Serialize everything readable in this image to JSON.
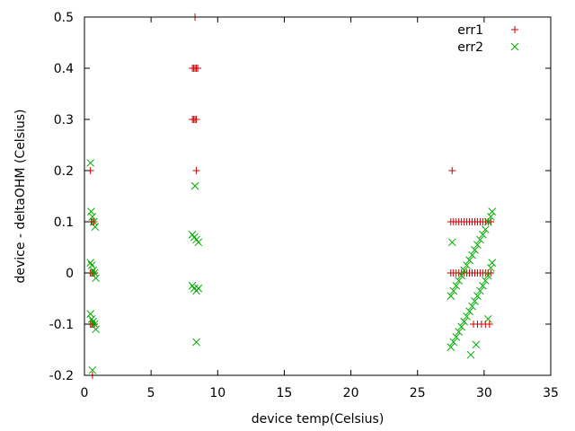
{
  "chart_data": {
    "type": "scatter",
    "title": "",
    "xlabel": "device temp(Celsius)",
    "ylabel": "device - deltaOHM (Celsius)",
    "xlim": [
      0,
      35
    ],
    "ylim": [
      -0.2,
      0.5
    ],
    "xticks": [
      0,
      5,
      10,
      15,
      20,
      25,
      30,
      35
    ],
    "yticks": [
      -0.2,
      -0.1,
      0,
      0.1,
      0.2,
      0.3,
      0.4,
      0.5
    ],
    "grid": false,
    "legend_position": "top-right",
    "series": [
      {
        "name": "err1",
        "marker": "plus",
        "color": "#cc0000",
        "points": [
          [
            0.45,
            0.2
          ],
          [
            0.5,
            0.1
          ],
          [
            0.6,
            0.1
          ],
          [
            0.7,
            0.1
          ],
          [
            0.45,
            0.0
          ],
          [
            0.55,
            0.0
          ],
          [
            0.65,
            0.0
          ],
          [
            0.75,
            0.0
          ],
          [
            0.45,
            -0.1
          ],
          [
            0.55,
            -0.1
          ],
          [
            0.65,
            -0.1
          ],
          [
            0.75,
            -0.1
          ],
          [
            0.6,
            -0.2
          ],
          [
            8.3,
            0.5
          ],
          [
            8.1,
            0.4
          ],
          [
            8.2,
            0.4
          ],
          [
            8.3,
            0.4
          ],
          [
            8.4,
            0.4
          ],
          [
            8.5,
            0.4
          ],
          [
            8.1,
            0.3
          ],
          [
            8.2,
            0.3
          ],
          [
            8.3,
            0.3
          ],
          [
            8.4,
            0.3
          ],
          [
            8.4,
            0.2
          ],
          [
            27.6,
            0.2
          ],
          [
            27.5,
            0.1
          ],
          [
            27.7,
            0.1
          ],
          [
            27.9,
            0.1
          ],
          [
            28.1,
            0.1
          ],
          [
            28.3,
            0.1
          ],
          [
            28.5,
            0.1
          ],
          [
            28.7,
            0.1
          ],
          [
            28.9,
            0.1
          ],
          [
            29.1,
            0.1
          ],
          [
            29.3,
            0.1
          ],
          [
            29.5,
            0.1
          ],
          [
            29.7,
            0.1
          ],
          [
            29.9,
            0.1
          ],
          [
            30.1,
            0.1
          ],
          [
            30.3,
            0.1
          ],
          [
            30.5,
            0.1
          ],
          [
            27.5,
            0.0
          ],
          [
            27.7,
            0.0
          ],
          [
            27.9,
            0.0
          ],
          [
            28.1,
            0.0
          ],
          [
            28.3,
            0.0
          ],
          [
            28.5,
            0.0
          ],
          [
            28.7,
            0.0
          ],
          [
            28.9,
            0.0
          ],
          [
            29.1,
            0.0
          ],
          [
            29.3,
            0.0
          ],
          [
            29.5,
            0.0
          ],
          [
            29.7,
            0.0
          ],
          [
            29.9,
            0.0
          ],
          [
            30.1,
            0.0
          ],
          [
            30.3,
            0.0
          ],
          [
            30.5,
            0.0
          ],
          [
            29.2,
            -0.1
          ],
          [
            29.5,
            -0.1
          ],
          [
            29.8,
            -0.1
          ],
          [
            30.1,
            -0.1
          ],
          [
            30.4,
            -0.1
          ]
        ]
      },
      {
        "name": "err2",
        "marker": "cross",
        "color": "#00aa00",
        "points": [
          [
            0.45,
            0.215
          ],
          [
            0.5,
            0.12
          ],
          [
            0.6,
            0.11
          ],
          [
            0.7,
            0.1
          ],
          [
            0.8,
            0.09
          ],
          [
            0.45,
            0.02
          ],
          [
            0.55,
            0.015
          ],
          [
            0.65,
            0.005
          ],
          [
            0.75,
            0.0
          ],
          [
            0.85,
            -0.01
          ],
          [
            0.45,
            -0.08
          ],
          [
            0.55,
            -0.09
          ],
          [
            0.65,
            -0.095
          ],
          [
            0.75,
            -0.1
          ],
          [
            0.85,
            -0.11
          ],
          [
            0.6,
            -0.19
          ],
          [
            8.3,
            0.17
          ],
          [
            8.1,
            0.075
          ],
          [
            8.25,
            0.07
          ],
          [
            8.4,
            0.065
          ],
          [
            8.55,
            0.06
          ],
          [
            8.1,
            -0.025
          ],
          [
            8.25,
            -0.03
          ],
          [
            8.4,
            -0.035
          ],
          [
            8.55,
            -0.03
          ],
          [
            8.4,
            -0.135
          ],
          [
            27.6,
            0.06
          ],
          [
            27.5,
            -0.045
          ],
          [
            27.7,
            -0.035
          ],
          [
            27.9,
            -0.025
          ],
          [
            28.1,
            -0.015
          ],
          [
            28.3,
            -0.005
          ],
          [
            28.5,
            0.005
          ],
          [
            28.7,
            0.015
          ],
          [
            28.9,
            0.025
          ],
          [
            29.1,
            0.035
          ],
          [
            29.3,
            0.045
          ],
          [
            29.5,
            0.055
          ],
          [
            29.7,
            0.065
          ],
          [
            29.9,
            0.075
          ],
          [
            30.1,
            0.085
          ],
          [
            30.3,
            0.1
          ],
          [
            30.5,
            0.11
          ],
          [
            30.6,
            0.12
          ],
          [
            27.5,
            -0.145
          ],
          [
            27.7,
            -0.135
          ],
          [
            27.9,
            -0.125
          ],
          [
            28.1,
            -0.115
          ],
          [
            28.3,
            -0.105
          ],
          [
            28.5,
            -0.095
          ],
          [
            28.7,
            -0.085
          ],
          [
            28.9,
            -0.075
          ],
          [
            29.1,
            -0.065
          ],
          [
            29.3,
            -0.055
          ],
          [
            29.5,
            -0.045
          ],
          [
            29.7,
            -0.035
          ],
          [
            29.9,
            -0.025
          ],
          [
            30.1,
            -0.015
          ],
          [
            30.3,
            -0.005
          ],
          [
            30.5,
            0.01
          ],
          [
            30.6,
            0.02
          ],
          [
            29.0,
            -0.16
          ],
          [
            29.4,
            -0.14
          ],
          [
            30.3,
            -0.09
          ]
        ]
      }
    ]
  }
}
